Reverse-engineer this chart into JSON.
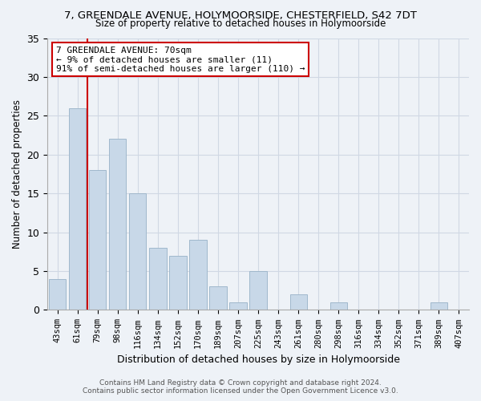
{
  "title": "7, GREENDALE AVENUE, HOLYMOORSIDE, CHESTERFIELD, S42 7DT",
  "subtitle": "Size of property relative to detached houses in Holymoorside",
  "xlabel": "Distribution of detached houses by size in Holymoorside",
  "ylabel": "Number of detached properties",
  "footer1": "Contains HM Land Registry data © Crown copyright and database right 2024.",
  "footer2": "Contains public sector information licensed under the Open Government Licence v3.0.",
  "categories": [
    "43sqm",
    "61sqm",
    "79sqm",
    "98sqm",
    "116sqm",
    "134sqm",
    "152sqm",
    "170sqm",
    "189sqm",
    "207sqm",
    "225sqm",
    "243sqm",
    "261sqm",
    "280sqm",
    "298sqm",
    "316sqm",
    "334sqm",
    "352sqm",
    "371sqm",
    "389sqm",
    "407sqm"
  ],
  "values": [
    4,
    26,
    18,
    22,
    15,
    8,
    7,
    9,
    3,
    1,
    5,
    0,
    2,
    0,
    1,
    0,
    0,
    0,
    0,
    1,
    0
  ],
  "bar_color": "#c8d8e8",
  "bar_edge_color": "#a0b8cc",
  "bg_color": "#eef2f7",
  "grid_color": "#d0d8e4",
  "vline_x_index": 1,
  "vline_color": "#cc0000",
  "annotation_line1": "7 GREENDALE AVENUE: 70sqm",
  "annotation_line2": "← 9% of detached houses are smaller (11)",
  "annotation_line3": "91% of semi-detached houses are larger (110) →",
  "annotation_box_color": "#ffffff",
  "annotation_box_edge": "#cc0000",
  "ylim": [
    0,
    35
  ],
  "yticks": [
    0,
    5,
    10,
    15,
    20,
    25,
    30,
    35
  ]
}
